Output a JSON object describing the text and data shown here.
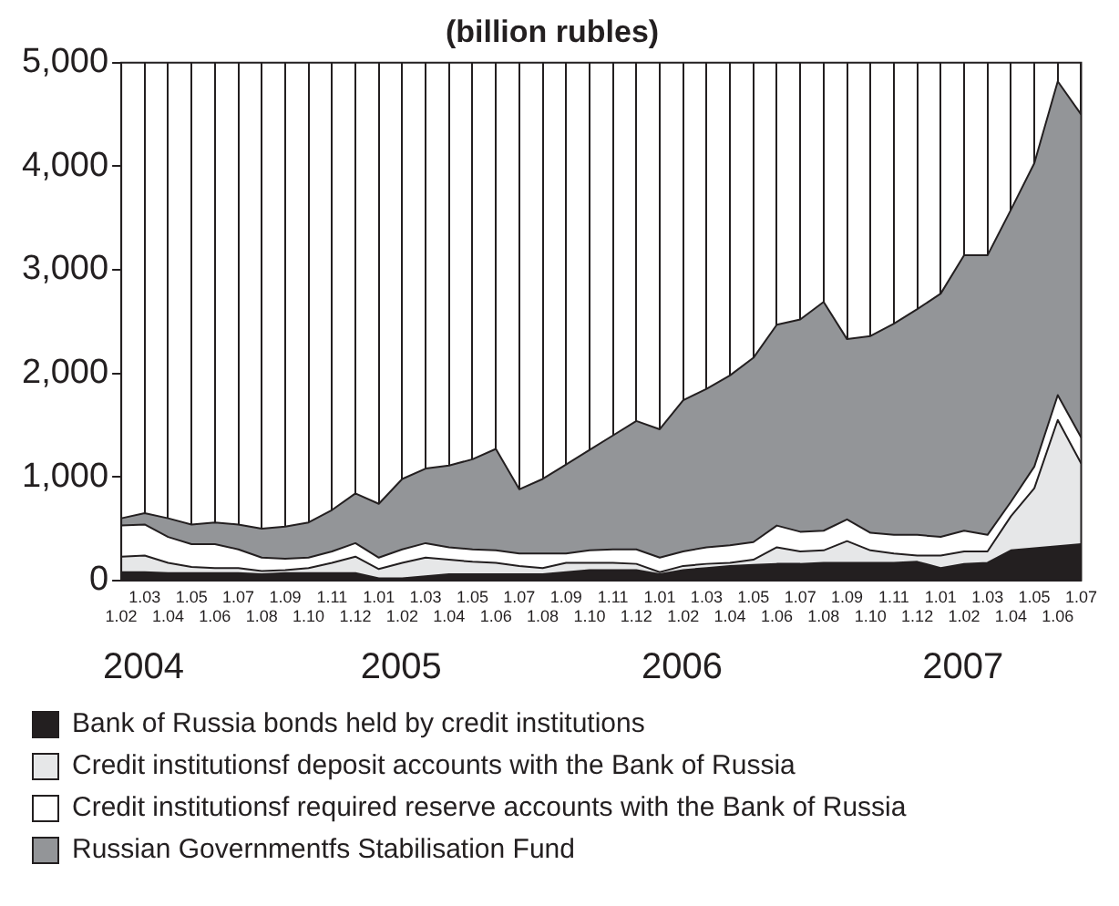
{
  "chart_data": {
    "type": "area",
    "title": "(billion rubles)",
    "stacked": true,
    "grid": "x",
    "legend": "bottom",
    "categories": [
      "1.02",
      "1.03",
      "1.04",
      "1.05",
      "1.06",
      "1.07",
      "1.08",
      "1.09",
      "1.10",
      "1.11",
      "1.12",
      "1.01",
      "1.02",
      "1.03",
      "1.04",
      "1.05",
      "1.06",
      "1.07",
      "1.08",
      "1.09",
      "1.10",
      "1.11",
      "1.12",
      "1.01",
      "1.02",
      "1.03",
      "1.04",
      "1.05",
      "1.06",
      "1.07",
      "1.08",
      "1.09",
      "1.10",
      "1.11",
      "1.12",
      "1.01",
      "1.02",
      "1.03",
      "1.04",
      "1.05",
      "1.06",
      "1.07"
    ],
    "annotations": [
      "2004",
      "2005",
      "2006",
      "2007"
    ],
    "ylim": [
      0,
      5000
    ],
    "yticks": [
      0,
      {
        "value": 1000,
        "label": "1,000"
      },
      {
        "value": 2000,
        "label": "2,000"
      },
      {
        "value": 3000,
        "label": "3,000"
      },
      {
        "value": 4000,
        "label": "4,000"
      },
      {
        "value": 5000,
        "label": "5,000"
      }
    ],
    "series": [
      {
        "name": "Bank of Russia bonds held by credit institutions",
        "color": "#231f20",
        "values": [
          80,
          80,
          70,
          70,
          70,
          70,
          60,
          70,
          70,
          70,
          70,
          20,
          20,
          40,
          60,
          60,
          60,
          60,
          60,
          80,
          100,
          100,
          100,
          60,
          100,
          120,
          140,
          150,
          160,
          160,
          170,
          170,
          170,
          170,
          180,
          120,
          160,
          170,
          290,
          310,
          330,
          350
        ]
      },
      {
        "name": "Credit institutionsf deposit accounts with the Bank of Russia",
        "color": "#e6e7e8",
        "values": [
          150,
          160,
          100,
          60,
          50,
          50,
          30,
          30,
          50,
          100,
          160,
          90,
          150,
          180,
          140,
          120,
          110,
          80,
          60,
          90,
          70,
          70,
          60,
          20,
          40,
          40,
          30,
          50,
          160,
          120,
          120,
          210,
          120,
          90,
          60,
          120,
          120,
          110,
          330,
          580,
          1220,
          780
        ]
      },
      {
        "name": "Credit institutionsf required reserve accounts with the Bank of Russia",
        "color": "#ffffff",
        "values": [
          300,
          300,
          250,
          220,
          230,
          180,
          130,
          110,
          100,
          110,
          130,
          110,
          130,
          140,
          120,
          120,
          120,
          120,
          140,
          90,
          120,
          130,
          140,
          140,
          140,
          160,
          170,
          170,
          210,
          190,
          190,
          210,
          170,
          180,
          200,
          180,
          200,
          160,
          140,
          210,
          240,
          250
        ]
      },
      {
        "name": "Russian Governmentfs Stabilisation Fund",
        "color": "#939598",
        "values": [
          70,
          110,
          180,
          190,
          210,
          240,
          280,
          310,
          340,
          400,
          480,
          520,
          680,
          720,
          790,
          870,
          980,
          620,
          720,
          860,
          970,
          1100,
          1240,
          1240,
          1460,
          1530,
          1640,
          1780,
          1940,
          2050,
          2210,
          1740,
          1900,
          2040,
          2180,
          2350,
          2660,
          2700,
          2820,
          2930,
          3030,
          3120
        ]
      }
    ]
  }
}
